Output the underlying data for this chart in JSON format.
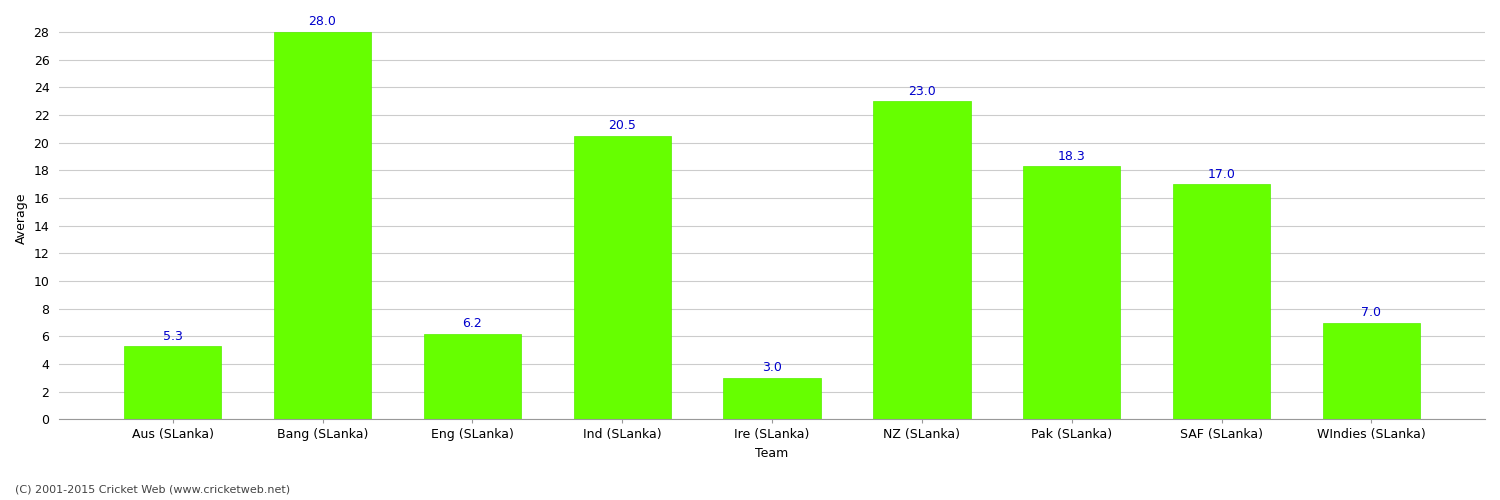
{
  "categories": [
    "Aus (SLanka)",
    "Bang (SLanka)",
    "Eng (SLanka)",
    "Ind (SLanka)",
    "Ire (SLanka)",
    "NZ (SLanka)",
    "Pak (SLanka)",
    "SAF (SLanka)",
    "WIndies (SLanka)"
  ],
  "values": [
    5.3,
    28.0,
    6.2,
    20.5,
    3.0,
    23.0,
    18.3,
    17.0,
    7.0
  ],
  "bar_color": "#66ff00",
  "bar_edge_color": "#55ee00",
  "label_color": "#0000cc",
  "ylabel": "Average",
  "xlabel": "Team",
  "ylim": [
    0,
    29
  ],
  "yticks": [
    0,
    2,
    4,
    6,
    8,
    10,
    12,
    14,
    16,
    18,
    20,
    22,
    24,
    26,
    28
  ],
  "annotation_fontsize": 9,
  "xlabel_fontsize": 9,
  "ylabel_fontsize": 9,
  "tick_fontsize": 9,
  "background_color": "#ffffff",
  "grid_color": "#cccccc",
  "footer_text": "(C) 2001-2015 Cricket Web (www.cricketweb.net)",
  "footer_fontsize": 8,
  "footer_color": "#444444",
  "bar_width": 0.65
}
